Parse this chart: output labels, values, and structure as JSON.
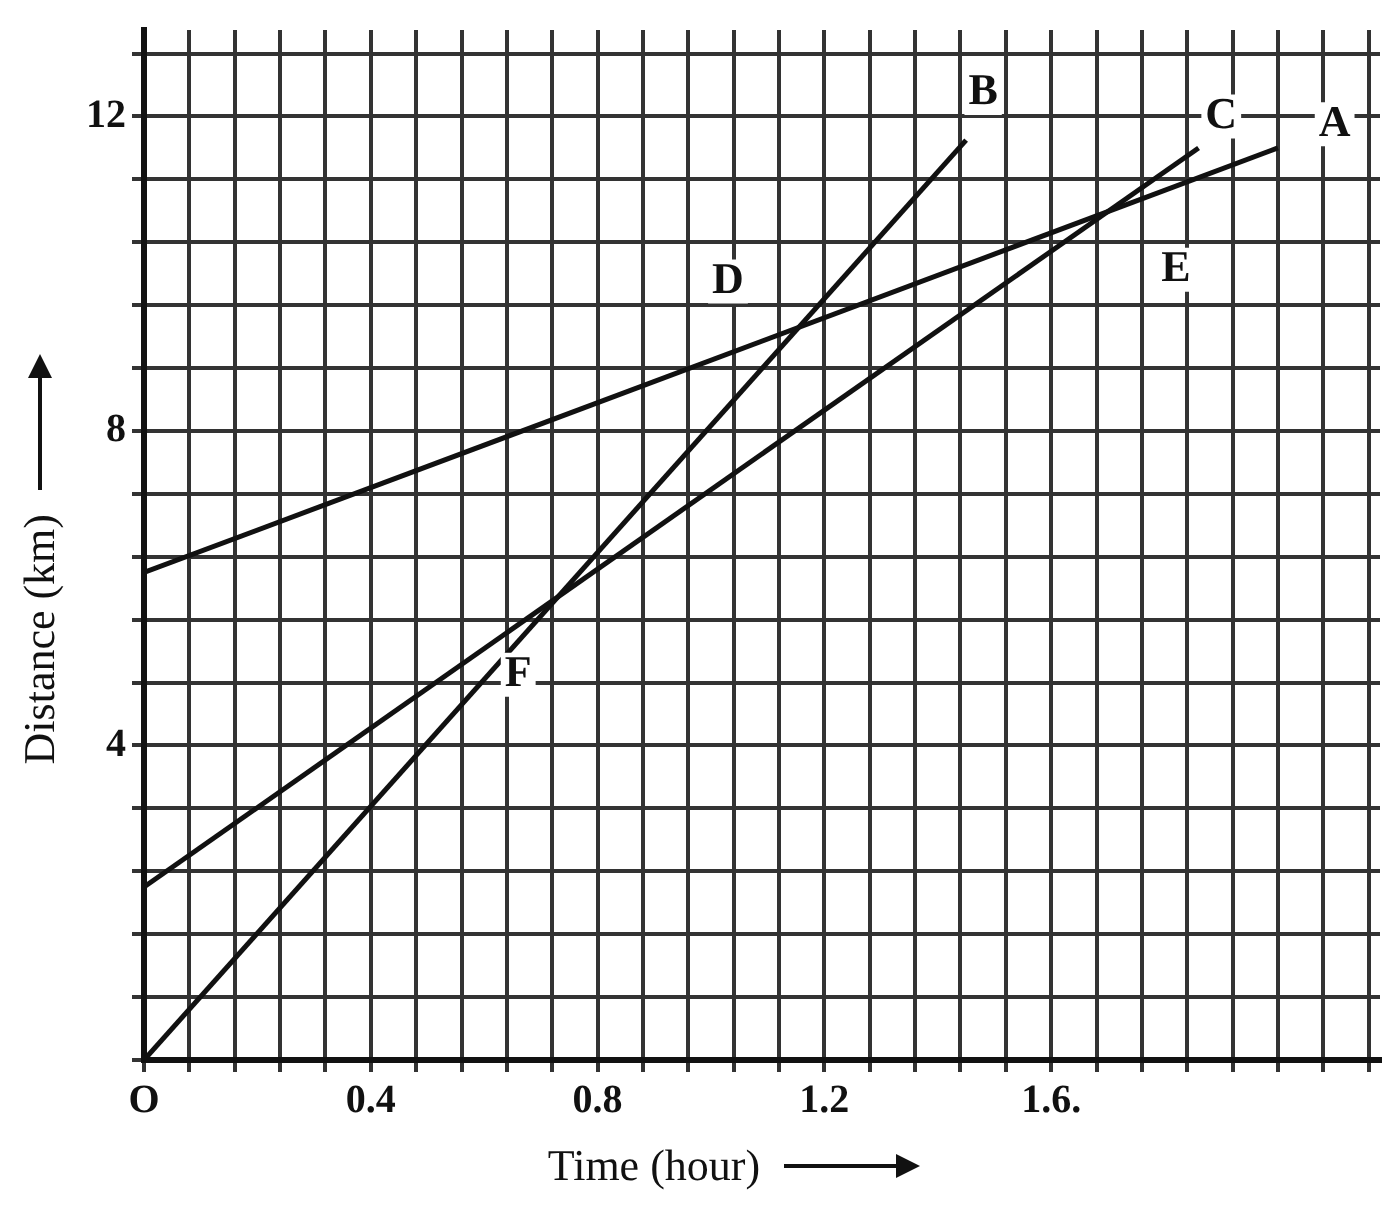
{
  "chart_data": {
    "type": "line",
    "xlabel": "Time (hour)",
    "ylabel": "Distance (km)",
    "xlim": [
      0,
      2.18
    ],
    "ylim": [
      0,
      13.1
    ],
    "xticks": [
      {
        "value": 0,
        "label": "O"
      },
      {
        "value": 0.08,
        "label": null
      },
      {
        "value": 0.16,
        "label": null
      },
      {
        "value": 0.24,
        "label": null
      },
      {
        "value": 0.32,
        "label": null
      },
      0.4,
      {
        "value": 0.48,
        "label": null
      },
      {
        "value": 0.56,
        "label": null
      },
      {
        "value": 0.64,
        "label": null
      },
      {
        "value": 0.72,
        "label": null
      },
      0.8,
      {
        "value": 0.88,
        "label": null
      },
      {
        "value": 0.96,
        "label": null
      },
      {
        "value": 1.04,
        "label": null
      },
      {
        "value": 1.12,
        "label": null
      },
      1.2,
      {
        "value": 1.28,
        "label": null
      },
      {
        "value": 1.36,
        "label": null
      },
      {
        "value": 1.44,
        "label": null
      },
      {
        "value": 1.52,
        "label": null
      },
      {
        "value": 1.6,
        "label": "1.6."
      },
      {
        "value": 1.68,
        "label": null
      },
      {
        "value": 1.76,
        "label": null
      },
      {
        "value": 1.84,
        "label": null
      },
      {
        "value": 1.92,
        "label": null
      },
      {
        "value": 2.0,
        "label": null
      },
      {
        "value": 2.08,
        "label": null
      },
      {
        "value": 2.16,
        "label": null
      }
    ],
    "yticks": [
      {
        "value": 0,
        "label": null
      },
      {
        "value": 0.8,
        "label": null
      },
      {
        "value": 1.6,
        "label": null
      },
      {
        "value": 2.4,
        "label": null
      },
      {
        "value": 3.2,
        "label": null
      },
      4,
      {
        "value": 4.8,
        "label": null
      },
      {
        "value": 5.6,
        "label": null
      },
      {
        "value": 6.4,
        "label": null
      },
      {
        "value": 7.2,
        "label": null
      },
      8,
      {
        "value": 8.8,
        "label": null
      },
      {
        "value": 9.6,
        "label": null
      },
      {
        "value": 10.4,
        "label": null
      },
      {
        "value": 11.2,
        "label": null
      },
      12,
      {
        "value": 12.8,
        "label": null
      }
    ],
    "grid": true,
    "legend": false,
    "marker": "none",
    "line_style": "solid",
    "series": [
      {
        "color": "#111111",
        "x": [
          0,
          2.0
        ],
        "values": [
          6.2,
          11.6
        ]
      },
      {
        "color": "#111111",
        "x": [
          0,
          1.45
        ],
        "values": [
          0,
          11.7
        ]
      },
      {
        "color": "#111111",
        "x": [
          0,
          1.86
        ],
        "values": [
          2.2,
          11.6
        ]
      }
    ],
    "annotations": [
      {
        "text": "A",
        "x": 2.1,
        "y": 11.9
      },
      {
        "text": "B",
        "x": 1.48,
        "y": 12.3
      },
      {
        "text": "C",
        "x": 1.9,
        "y": 12.0
      },
      {
        "text": "D",
        "x": 1.03,
        "y": 9.9
      },
      {
        "text": "E",
        "x": 1.82,
        "y": 10.05
      },
      {
        "text": "F",
        "x": 0.66,
        "y": 4.9
      }
    ]
  }
}
